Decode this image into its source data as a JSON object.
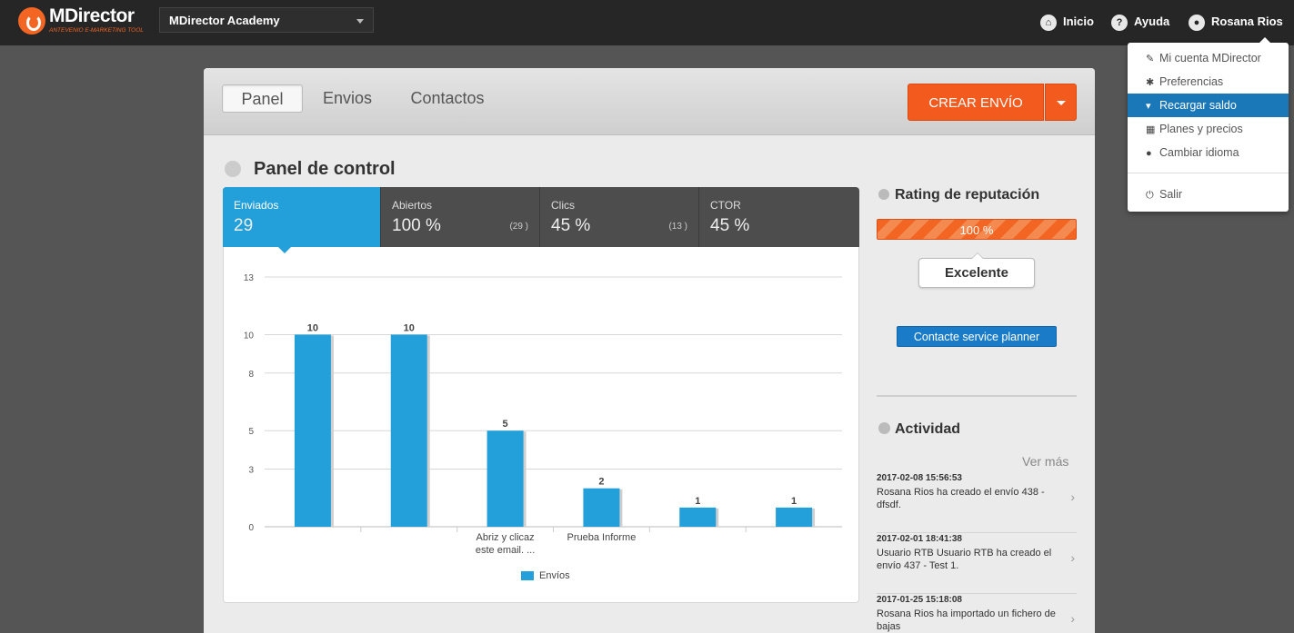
{
  "topbar": {
    "logo_text": "MDirector",
    "logo_sub": "ANTEVENIO E-MARKETING TOOL",
    "account": "MDirector Academy",
    "nav": {
      "inicio": "Inicio",
      "ayuda": "Ayuda",
      "user": "Rosana Rios"
    }
  },
  "dropdown": {
    "items": [
      {
        "label": "Mi cuenta MDirector",
        "icon": "wrench-icon"
      },
      {
        "label": "Preferencias",
        "icon": "gear-icon"
      },
      {
        "label": "Recargar saldo",
        "icon": "cart-icon"
      },
      {
        "label": "Planes y precios",
        "icon": "grid-icon"
      },
      {
        "label": "Cambiar idioma",
        "icon": "globe-icon"
      },
      {
        "label": "Salir",
        "icon": "power-icon"
      }
    ]
  },
  "tabs": [
    "Panel",
    "Envios",
    "Contactos"
  ],
  "crear_envio": "CREAR ENVÍO",
  "panel_title": "Panel de control",
  "stats": [
    {
      "label": "Enviados",
      "value": "29",
      "count": ""
    },
    {
      "label": "Abiertos",
      "value": "100 %",
      "count": "(29 )"
    },
    {
      "label": "Clics",
      "value": "45 %",
      "count": "(13 )"
    },
    {
      "label": "CTOR",
      "value": "45 %",
      "count": ""
    }
  ],
  "chart_data": {
    "type": "bar",
    "categories": [
      "",
      "",
      "Abriz y clicaz este email. ...",
      "Prueba Informe",
      "",
      ""
    ],
    "series": [
      {
        "name": "Envíos",
        "values": [
          10,
          10,
          5,
          2,
          1,
          1
        ]
      }
    ],
    "yticks": [
      0,
      3,
      5,
      8,
      10,
      13
    ],
    "ylim": [
      0,
      13
    ],
    "legend": "bottom",
    "color": "#23a0da"
  },
  "reputation": {
    "title": "Rating de reputación",
    "percent": 100,
    "percent_label": "100 %",
    "badge": "Excelente",
    "contact_button": "Contacte service planner"
  },
  "activity": {
    "title": "Actividad",
    "more": "Ver más",
    "items": [
      {
        "date": "2017-02-08 15:56:53",
        "text": "Rosana Rios ha creado el envío 438 - dfsdf."
      },
      {
        "date": "2017-02-01 18:41:38",
        "text": "Usuario RTB Usuario RTB ha creado el envío 437 - Test 1."
      },
      {
        "date": "2017-01-25 15:18:08",
        "text": "Rosana Rios ha importado un fichero de bajas"
      }
    ]
  }
}
